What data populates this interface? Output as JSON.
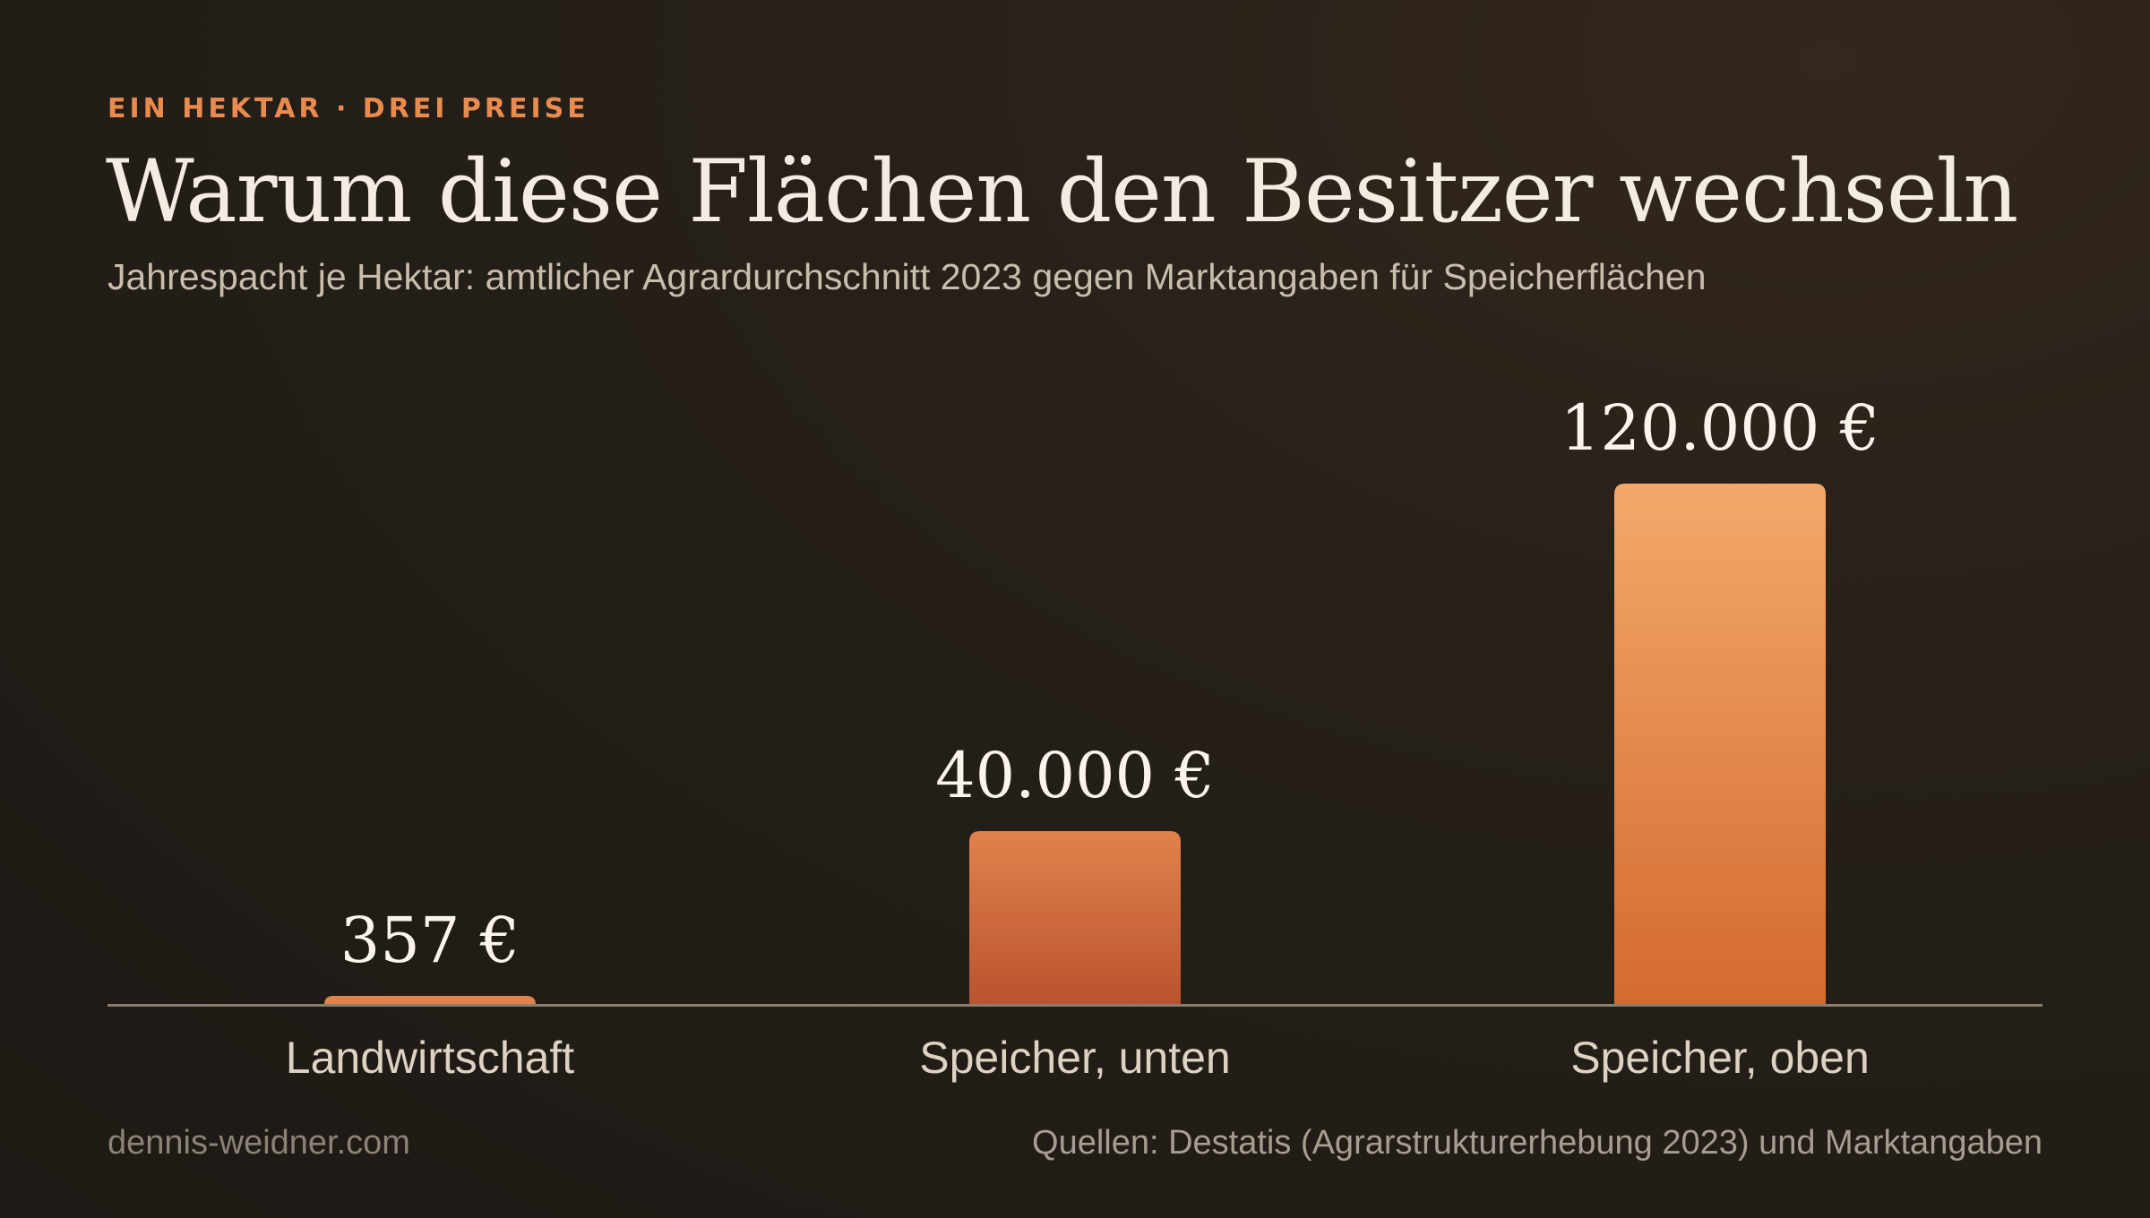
{
  "header": {
    "eyebrow": "EIN HEKTAR · DREI PREISE",
    "title": "Warum diese Flächen den Besitzer wechseln",
    "subtitle": "Jahrespacht je Hektar: amtlicher Agrardurchschnitt 2023 gegen Marktangaben für Speicherflächen"
  },
  "footer": {
    "site": "dennis-weidner.com",
    "source": "Quellen: Destatis (Agrarstrukturerhebung 2023) und Marktangaben"
  },
  "colors": {
    "accent": "#e98a4f",
    "bar_top": "#f3a96b",
    "bar_bottom": "#d46a2f",
    "bar_mid_top": "#e2814c",
    "bar_mid_bottom": "#b9532f",
    "baseline": "#8a7f6f"
  },
  "chart_data": {
    "type": "bar",
    "title": "Warum diese Flächen den Besitzer wechseln",
    "subtitle": "Jahrespacht je Hektar: amtlicher Agrardurchschnitt 2023 gegen Marktangaben für Speicherflächen",
    "categories": [
      "Landwirtschaft",
      "Speicher, unten",
      "Speicher, oben"
    ],
    "values": [
      357,
      40000,
      120000
    ],
    "value_labels": [
      "357 €",
      "40.000 €",
      "120.000 €"
    ],
    "xlabel": "",
    "ylabel": "",
    "ylim": [
      0,
      120000
    ],
    "grid": false,
    "legend": "none"
  }
}
